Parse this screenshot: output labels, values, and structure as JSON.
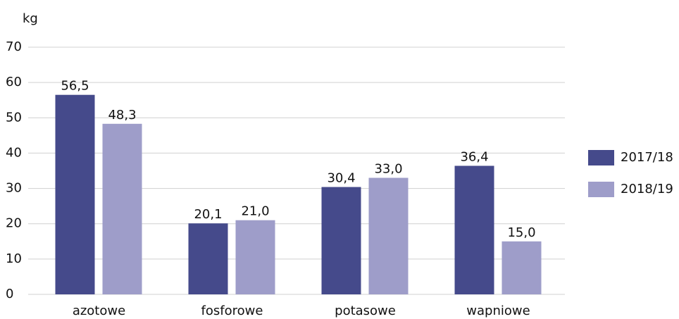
{
  "chart_data": {
    "type": "bar",
    "y_label": "kg",
    "categories": [
      "azotowe",
      "fosforowe",
      "potasowe",
      "wapniowe"
    ],
    "series": [
      {
        "name": "2017/18",
        "color": "#454a8b",
        "values": [
          56.5,
          20.1,
          30.4,
          36.4
        ],
        "value_labels": [
          "56,5",
          "20,1",
          "30,4",
          "36,4"
        ]
      },
      {
        "name": "2018/19",
        "color": "#9e9dc9",
        "values": [
          48.3,
          21.0,
          33.0,
          15.0
        ],
        "value_labels": [
          "48,3",
          "21,0",
          "33,0",
          "15,0"
        ]
      }
    ],
    "ylim": [
      0,
      70
    ],
    "yticks": [
      0,
      10,
      20,
      30,
      40,
      50,
      60,
      70
    ],
    "grid": true,
    "legend": "right"
  }
}
